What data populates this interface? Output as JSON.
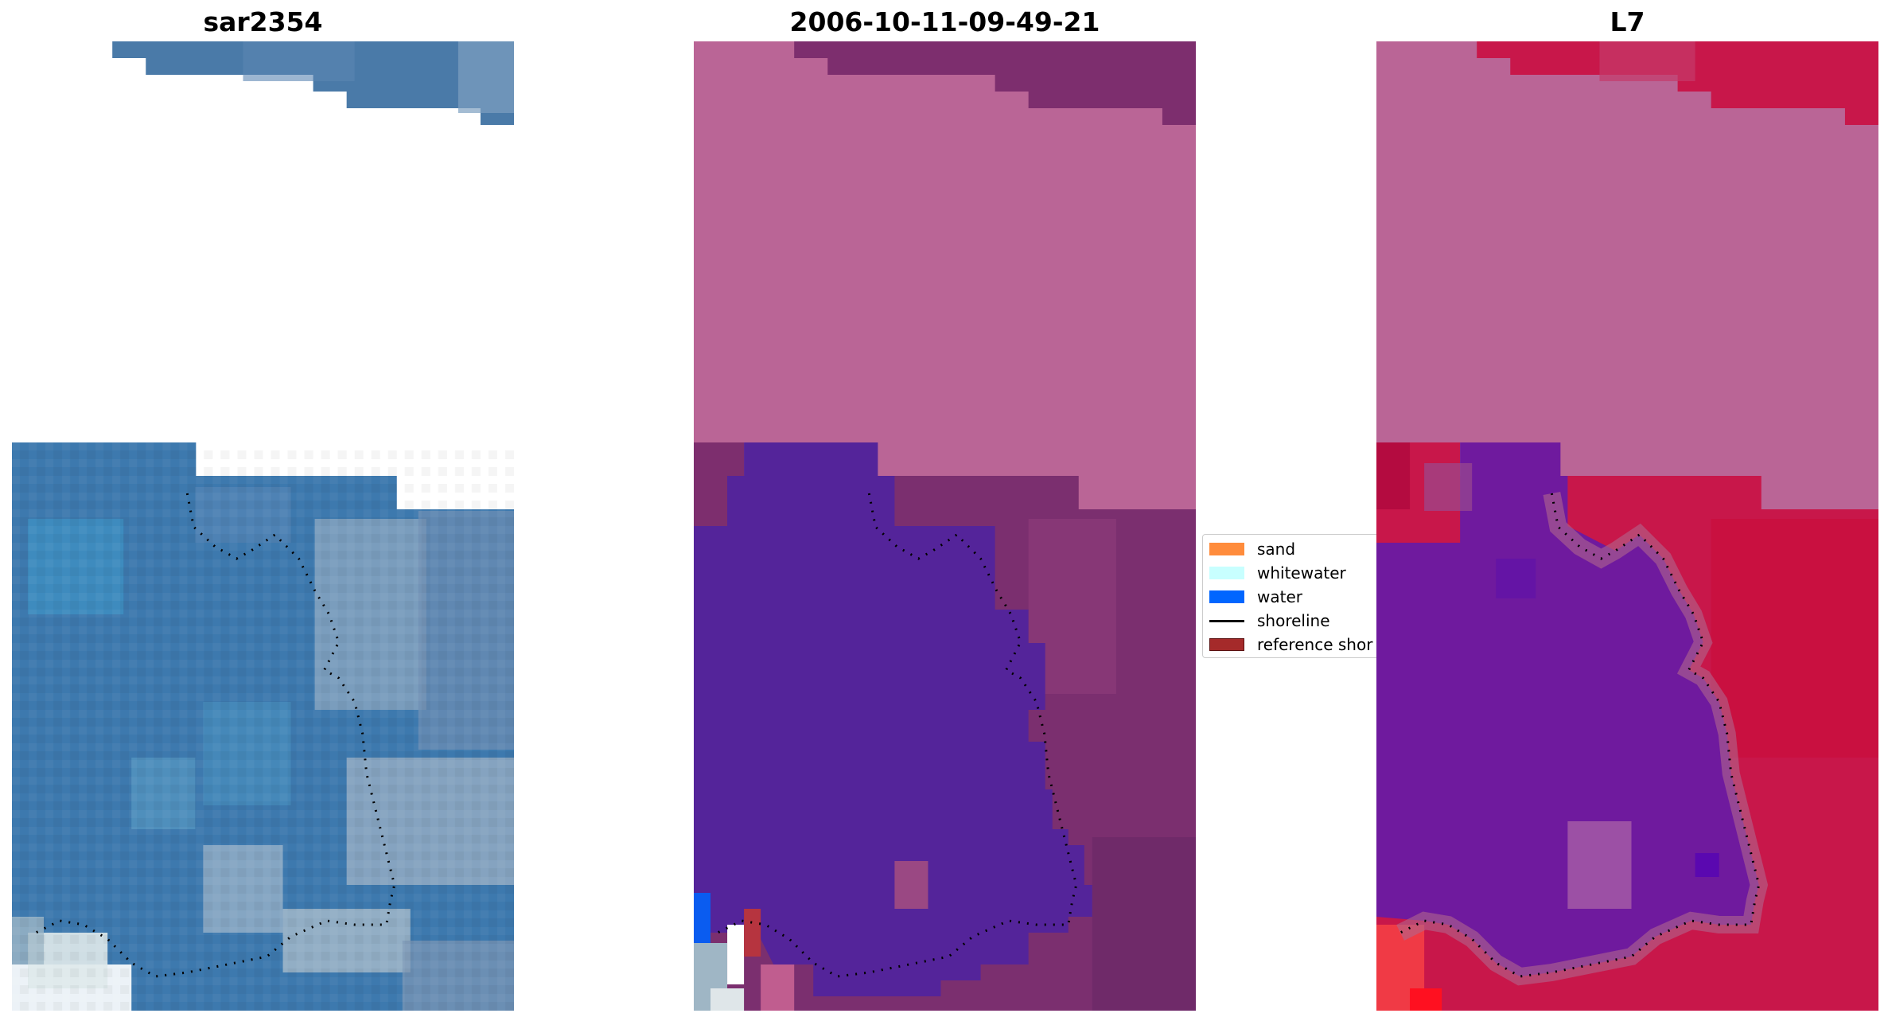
{
  "panels": [
    {
      "title": "sar2354",
      "name": "rgb-image-panel"
    },
    {
      "title": "2006-10-11-09-49-21",
      "name": "classified-image-panel"
    },
    {
      "title": "L7",
      "name": "mndwi-image-panel"
    }
  ],
  "legend": {
    "items": [
      {
        "label": "sand",
        "color": "#ff8c3c",
        "kind": "patch"
      },
      {
        "label": "whitewater",
        "color": "#c8ffff",
        "kind": "patch"
      },
      {
        "label": "water",
        "color": "#0066ff",
        "kind": "patch"
      },
      {
        "label": "shoreline",
        "color": "#000000",
        "kind": "line"
      },
      {
        "label": "reference shor",
        "color": "#a52a2a",
        "kind": "patch"
      }
    ]
  },
  "colors": {
    "rgb_water": "#3f7ab0",
    "classified_land_overlay": "#ba6596",
    "classified_water": "#54249a",
    "mndwi_land": "#c8174a",
    "mndwi_water": "#6f1a9e"
  }
}
